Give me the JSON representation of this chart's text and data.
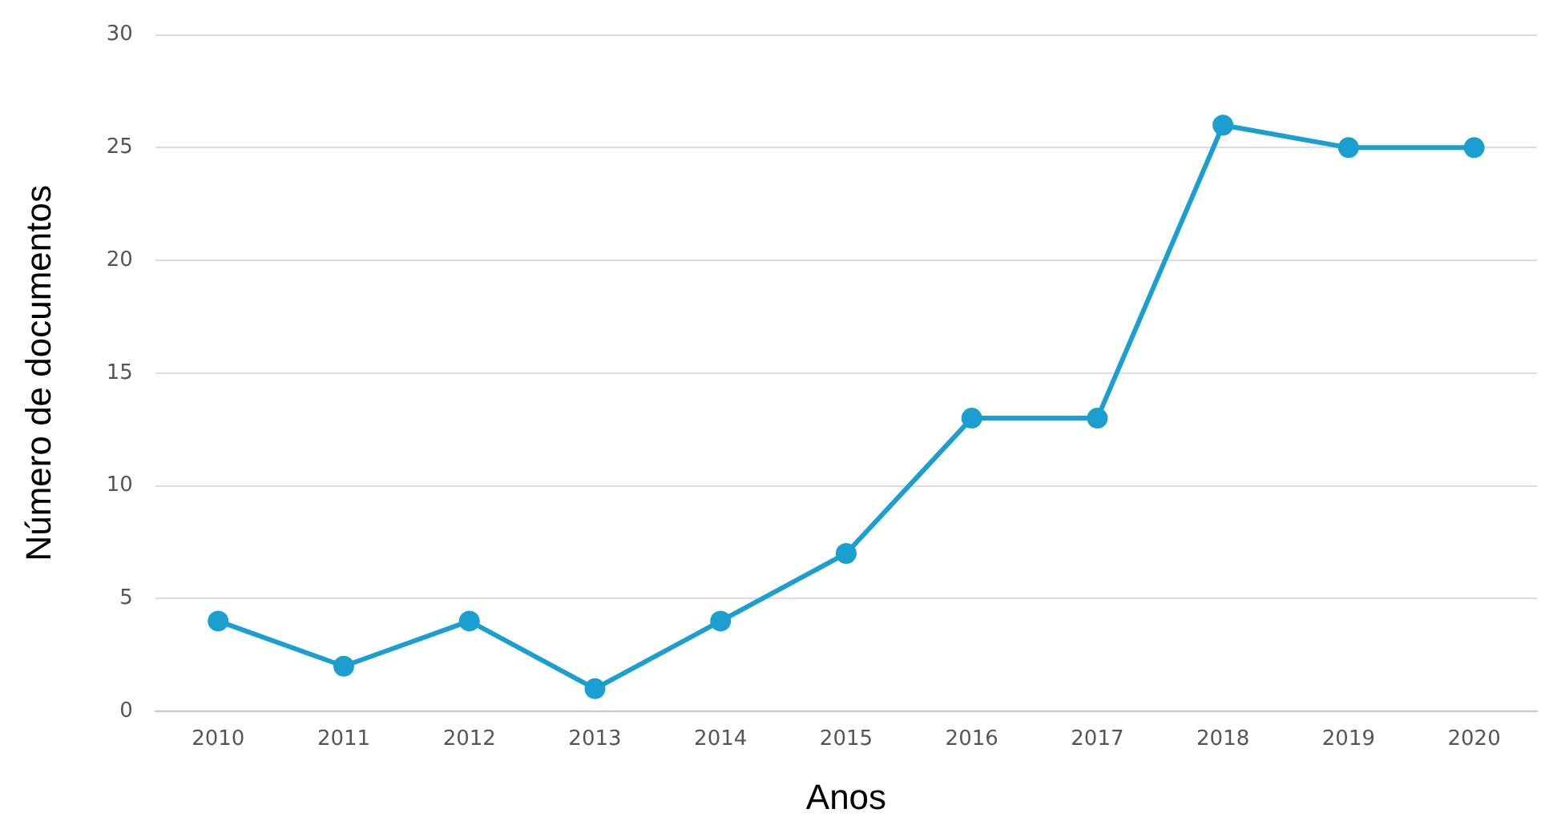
{
  "chart_data": {
    "type": "line",
    "xlabel": "Anos",
    "ylabel": "Número de documentos",
    "categories": [
      "2010",
      "2011",
      "2012",
      "2013",
      "2014",
      "2015",
      "2016",
      "2017",
      "2018",
      "2019",
      "2020"
    ],
    "series": [
      {
        "color": "#1a9fd0",
        "values": [
          4,
          2,
          4,
          1,
          4,
          7,
          13,
          13,
          26,
          25,
          25
        ]
      }
    ],
    "ylim": [
      0,
      30
    ],
    "yticks": [
      0,
      5,
      10,
      15,
      20,
      25,
      30
    ],
    "grid": "y",
    "legend": false,
    "marker": "circle",
    "line_style": "solid"
  }
}
